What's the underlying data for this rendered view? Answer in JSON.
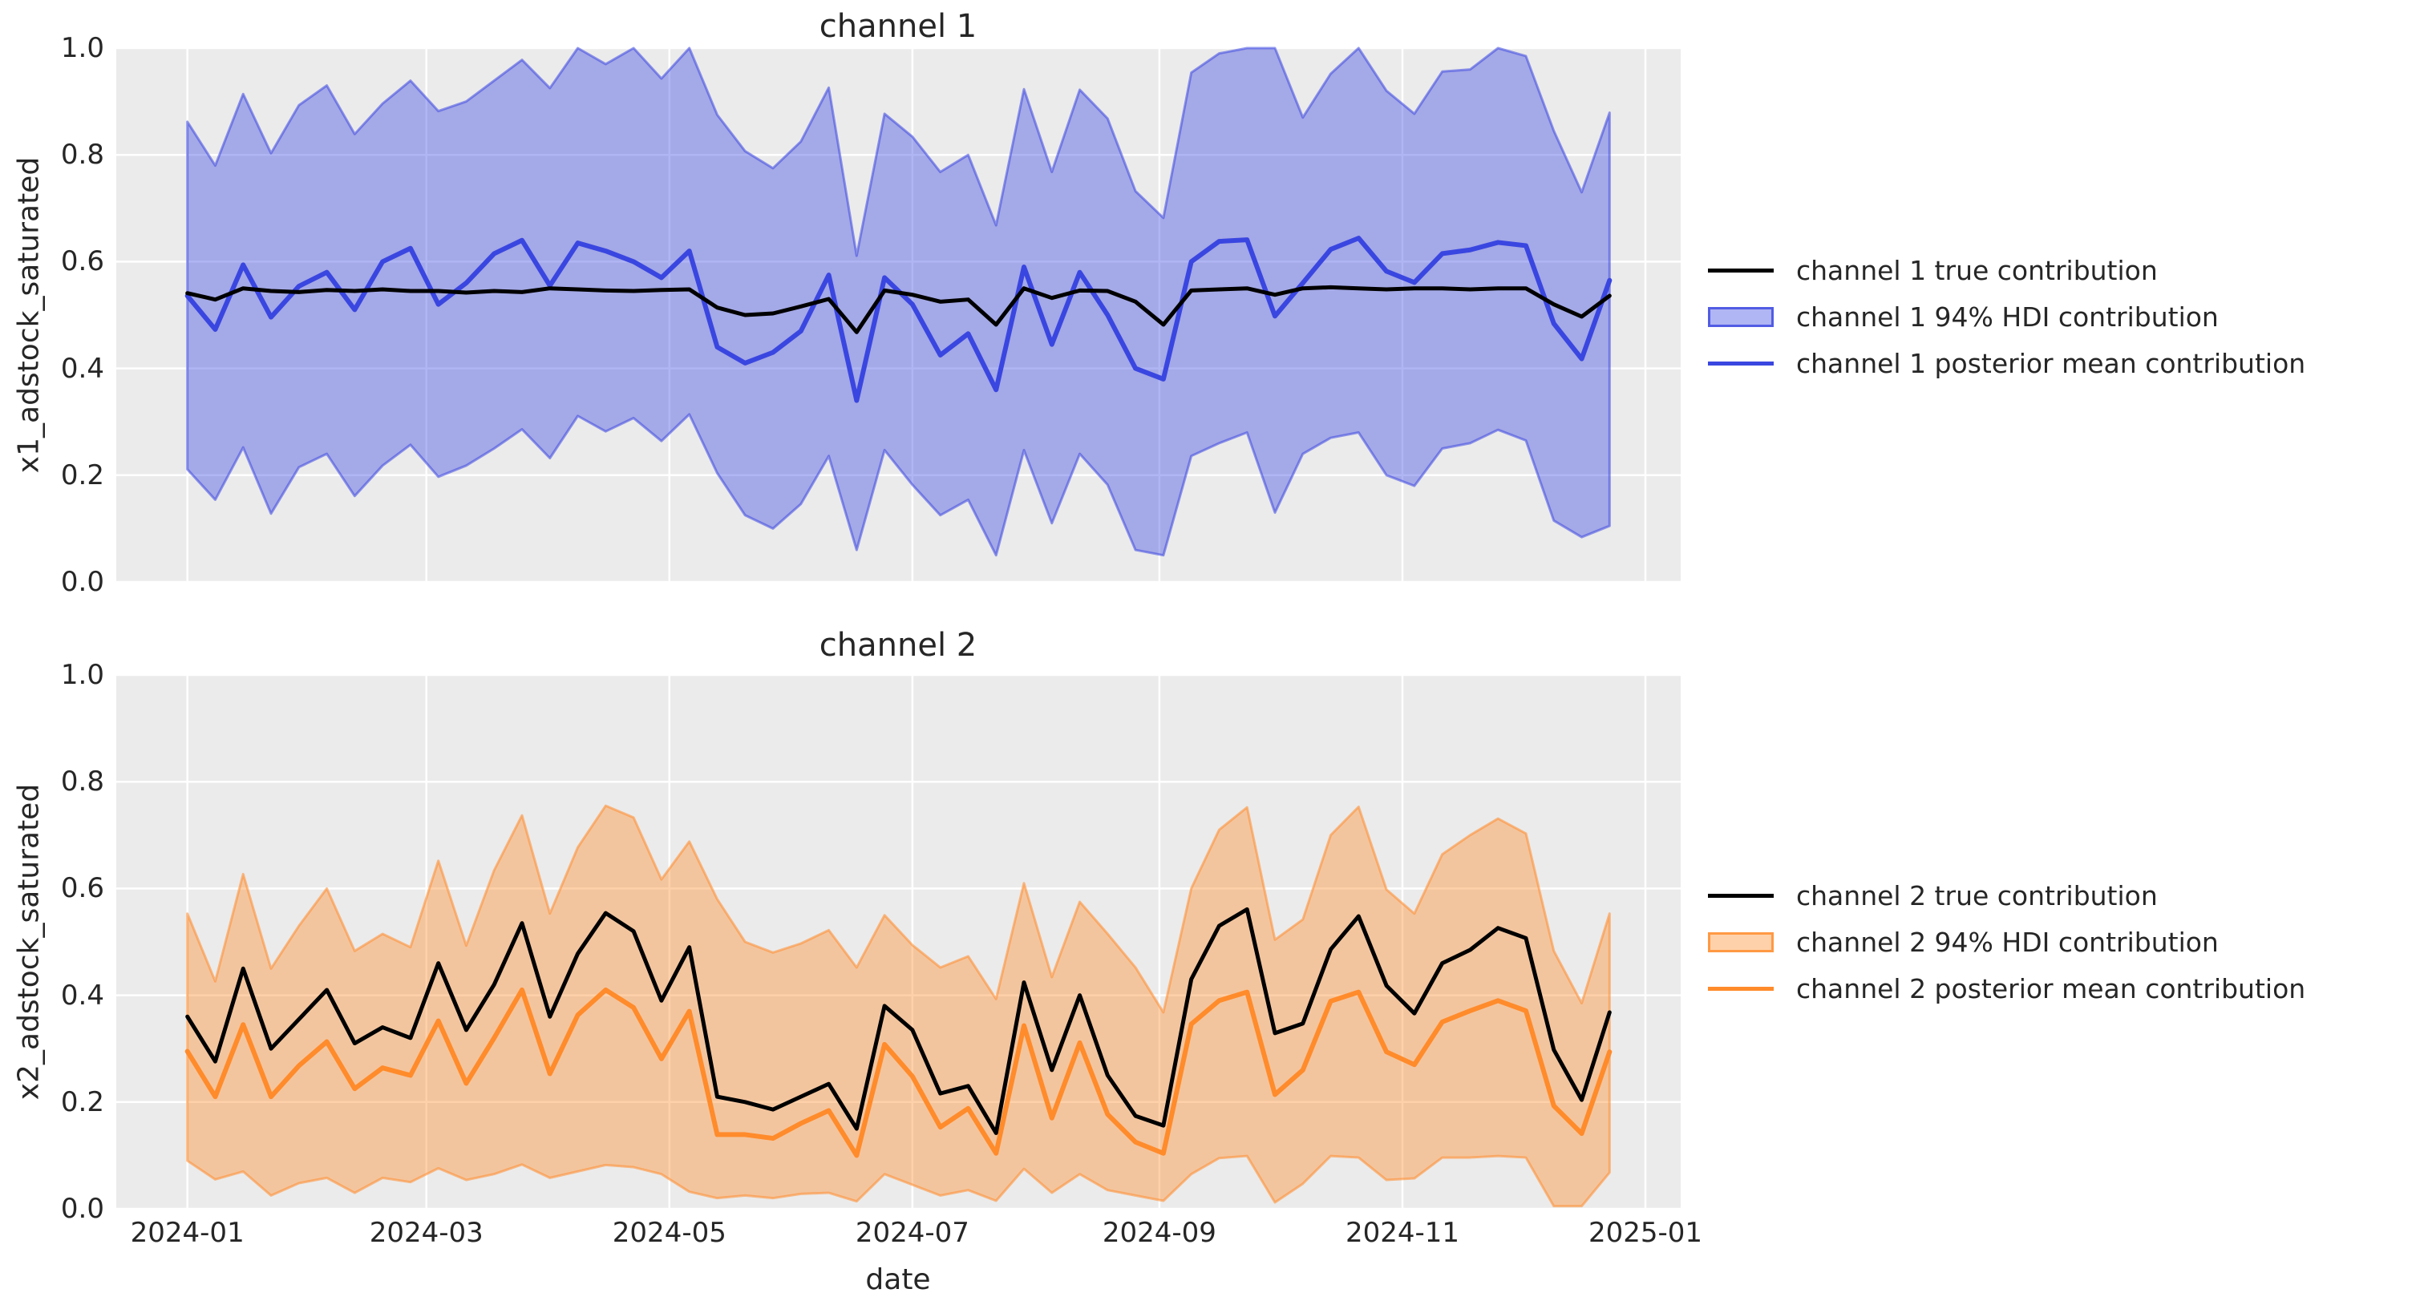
{
  "figure": {
    "background": "#ffffff",
    "text_color": "#262626"
  },
  "chart_data": [
    {
      "type": "line",
      "title": "channel 1",
      "ylabel": "x1_adstock_saturated",
      "xlabel": "",
      "grid": true,
      "background": "#ebebeb",
      "grid_color": "#ffffff",
      "legend_position": "center right",
      "true_color": "#000000",
      "posterior_color": "#3a46e0",
      "hdi_color": "#3a46e0",
      "hdi_fill_alpha": 0.4,
      "hdi_edge_alpha": 0.55,
      "ylim": [
        0.0,
        1.0
      ],
      "y_tick_values": [
        0.0,
        0.2,
        0.4,
        0.6,
        0.8,
        1.0
      ],
      "y_tick_labels": [
        "0.0",
        "0.2",
        "0.4",
        "0.6",
        "0.8",
        "1.0"
      ],
      "x_start_date": "2024-01-01",
      "x_step_days": 7,
      "x_day_range": [
        -17.85,
        374.85
      ],
      "x_tick_day_offsets": [
        0,
        60,
        121,
        182,
        244,
        305,
        366
      ],
      "x_tick_labels": [
        "2024-01",
        "2024-03",
        "2024-05",
        "2024-07",
        "2024-09",
        "2024-11",
        "2025-01"
      ],
      "legend_labels": [
        "channel 1 true contribution",
        "channel 1 94% HDI contribution",
        "channel 1 posterior mean contribution"
      ],
      "series": {
        "true": [
          0.541,
          0.529,
          0.55,
          0.545,
          0.543,
          0.547,
          0.545,
          0.548,
          0.545,
          0.545,
          0.542,
          0.545,
          0.543,
          0.55,
          0.548,
          0.546,
          0.545,
          0.547,
          0.548,
          0.514,
          0.5,
          0.503,
          0.516,
          0.53,
          0.468,
          0.546,
          0.538,
          0.525,
          0.529,
          0.482,
          0.55,
          0.532,
          0.546,
          0.545,
          0.525,
          0.482,
          0.546,
          0.548,
          0.55,
          0.538,
          0.55,
          0.552,
          0.55,
          0.548,
          0.55,
          0.55,
          0.548,
          0.55,
          0.55,
          0.52,
          0.497,
          0.536
        ],
        "posterior_mean": [
          0.536,
          0.473,
          0.594,
          0.496,
          0.554,
          0.58,
          0.51,
          0.6,
          0.625,
          0.52,
          0.56,
          0.615,
          0.64,
          0.555,
          0.635,
          0.62,
          0.6,
          0.57,
          0.62,
          0.44,
          0.41,
          0.43,
          0.47,
          0.575,
          0.34,
          0.57,
          0.52,
          0.425,
          0.465,
          0.36,
          0.59,
          0.445,
          0.58,
          0.5,
          0.4,
          0.38,
          0.6,
          0.638,
          0.641,
          0.498,
          0.56,
          0.623,
          0.644,
          0.582,
          0.561,
          0.615,
          0.622,
          0.636,
          0.63,
          0.484,
          0.418,
          0.565
        ],
        "hdi_94_lower": [
          0.211,
          0.154,
          0.252,
          0.128,
          0.215,
          0.24,
          0.161,
          0.218,
          0.257,
          0.197,
          0.218,
          0.25,
          0.286,
          0.232,
          0.311,
          0.282,
          0.307,
          0.264,
          0.314,
          0.204,
          0.125,
          0.1,
          0.146,
          0.236,
          0.06,
          0.247,
          0.182,
          0.125,
          0.154,
          0.05,
          0.247,
          0.11,
          0.24,
          0.182,
          0.06,
          0.05,
          0.236,
          0.26,
          0.28,
          0.13,
          0.24,
          0.27,
          0.28,
          0.2,
          0.18,
          0.25,
          0.26,
          0.285,
          0.265,
          0.115,
          0.084,
          0.105
        ],
        "hdi_94_upper": [
          0.862,
          0.78,
          0.914,
          0.803,
          0.893,
          0.93,
          0.839,
          0.896,
          0.939,
          0.882,
          0.9,
          0.939,
          0.978,
          0.925,
          1.0,
          0.97,
          1.0,
          0.943,
          1.0,
          0.875,
          0.807,
          0.775,
          0.825,
          0.926,
          0.611,
          0.877,
          0.834,
          0.768,
          0.8,
          0.668,
          0.923,
          0.768,
          0.922,
          0.868,
          0.732,
          0.682,
          0.954,
          0.99,
          1.0,
          1.0,
          0.87,
          0.952,
          1.0,
          0.92,
          0.877,
          0.956,
          0.96,
          1.0,
          0.985,
          0.845,
          0.73,
          0.879
        ]
      }
    },
    {
      "type": "line",
      "title": "channel 2",
      "ylabel": "x2_adstock_saturated",
      "xlabel": "date",
      "grid": true,
      "background": "#ebebeb",
      "grid_color": "#ffffff",
      "legend_position": "center right",
      "true_color": "#000000",
      "posterior_color": "#ff8b2b",
      "hdi_color": "#ff8b2b",
      "hdi_fill_alpha": 0.4,
      "hdi_edge_alpha": 0.55,
      "ylim": [
        0.0,
        1.0
      ],
      "y_tick_values": [
        0.0,
        0.2,
        0.4,
        0.6,
        0.8,
        1.0
      ],
      "y_tick_labels": [
        "0.0",
        "0.2",
        "0.4",
        "0.6",
        "0.8",
        "1.0"
      ],
      "x_start_date": "2024-01-01",
      "x_step_days": 7,
      "x_day_range": [
        -17.85,
        374.85
      ],
      "x_tick_day_offsets": [
        0,
        60,
        121,
        182,
        244,
        305,
        366
      ],
      "x_tick_labels": [
        "2024-01",
        "2024-03",
        "2024-05",
        "2024-07",
        "2024-09",
        "2024-11",
        "2025-01"
      ],
      "legend_labels": [
        "channel 2 true contribution",
        "channel 2 94% HDI contribution",
        "channel 2 posterior mean contribution"
      ],
      "series": {
        "true": [
          0.36,
          0.276,
          0.45,
          0.3,
          0.355,
          0.41,
          0.31,
          0.34,
          0.32,
          0.46,
          0.335,
          0.42,
          0.535,
          0.36,
          0.478,
          0.554,
          0.52,
          0.39,
          0.49,
          0.21,
          0.2,
          0.186,
          0.21,
          0.234,
          0.15,
          0.38,
          0.335,
          0.216,
          0.23,
          0.142,
          0.424,
          0.26,
          0.4,
          0.25,
          0.174,
          0.156,
          0.43,
          0.53,
          0.561,
          0.329,
          0.347,
          0.486,
          0.548,
          0.418,
          0.366,
          0.46,
          0.485,
          0.526,
          0.507,
          0.298,
          0.204,
          0.368
        ],
        "posterior_mean": [
          0.295,
          0.21,
          0.345,
          0.21,
          0.268,
          0.313,
          0.225,
          0.264,
          0.25,
          0.352,
          0.235,
          0.32,
          0.41,
          0.253,
          0.363,
          0.41,
          0.377,
          0.281,
          0.37,
          0.139,
          0.139,
          0.132,
          0.16,
          0.184,
          0.1,
          0.308,
          0.248,
          0.153,
          0.188,
          0.104,
          0.343,
          0.17,
          0.311,
          0.177,
          0.125,
          0.104,
          0.346,
          0.39,
          0.406,
          0.214,
          0.26,
          0.389,
          0.406,
          0.294,
          0.27,
          0.35,
          0.371,
          0.39,
          0.371,
          0.193,
          0.141,
          0.294
        ],
        "hdi_94_lower": [
          0.09,
          0.055,
          0.07,
          0.025,
          0.048,
          0.058,
          0.03,
          0.058,
          0.05,
          0.076,
          0.054,
          0.065,
          0.083,
          0.058,
          0.07,
          0.082,
          0.078,
          0.065,
          0.032,
          0.02,
          0.025,
          0.02,
          0.028,
          0.03,
          0.014,
          0.065,
          0.045,
          0.025,
          0.035,
          0.015,
          0.075,
          0.03,
          0.065,
          0.035,
          0.025,
          0.015,
          0.065,
          0.095,
          0.099,
          0.012,
          0.047,
          0.099,
          0.096,
          0.054,
          0.057,
          0.096,
          0.096,
          0.099,
          0.096,
          0.005,
          0.005,
          0.068
        ],
        "hdi_94_upper": [
          0.553,
          0.426,
          0.627,
          0.45,
          0.53,
          0.6,
          0.483,
          0.515,
          0.49,
          0.652,
          0.493,
          0.634,
          0.737,
          0.553,
          0.677,
          0.755,
          0.733,
          0.617,
          0.688,
          0.58,
          0.5,
          0.48,
          0.497,
          0.522,
          0.452,
          0.55,
          0.494,
          0.452,
          0.473,
          0.393,
          0.61,
          0.434,
          0.575,
          0.515,
          0.452,
          0.368,
          0.6,
          0.71,
          0.752,
          0.504,
          0.542,
          0.7,
          0.753,
          0.598,
          0.553,
          0.664,
          0.7,
          0.731,
          0.703,
          0.483,
          0.385,
          0.553
        ]
      }
    }
  ]
}
